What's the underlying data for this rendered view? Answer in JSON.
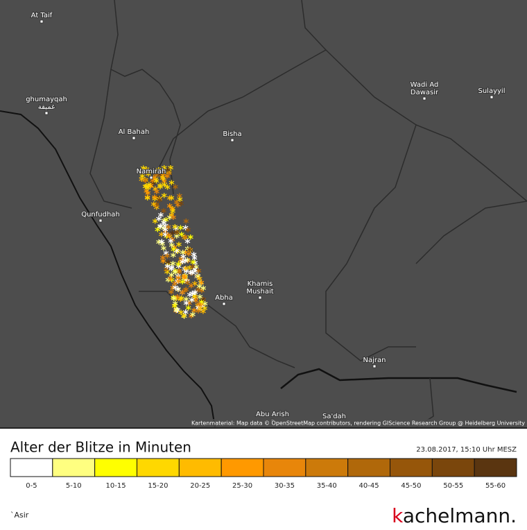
{
  "map": {
    "places": [
      {
        "lines": [
          "At Taif"
        ]
      },
      {
        "lines": [
          "ghumayqah",
          "غميقة"
        ]
      },
      {
        "lines": [
          "Al Bahah"
        ]
      },
      {
        "lines": [
          "Bisha"
        ]
      },
      {
        "lines": [
          "Wadi Ad",
          "Dawasir"
        ]
      },
      {
        "lines": [
          "Sulayyil"
        ]
      },
      {
        "lines": [
          "Namirah"
        ]
      },
      {
        "lines": [
          "Qunfudhah"
        ]
      },
      {
        "lines": [
          "Khamis",
          "Mushait"
        ]
      },
      {
        "lines": [
          "Abha"
        ]
      },
      {
        "lines": [
          "Najran"
        ]
      },
      {
        "lines": [
          "Abu Arish"
        ]
      },
      {
        "lines": [
          "Sa'dah"
        ]
      }
    ],
    "attribution": "Kartenmaterial: Map data © OpenStreetMap contributors, rendering GIScience Research Group @ Heidelberg University"
  },
  "legend": {
    "title": "Alter der Blitze in Minuten",
    "timestamp": "23.08.2017, 15:10 Uhr MESZ",
    "classes": [
      {
        "label": "0-5",
        "color": "#ffffff"
      },
      {
        "label": "5-10",
        "color": "#ffff80"
      },
      {
        "label": "10-15",
        "color": "#ffff00"
      },
      {
        "label": "15-20",
        "color": "#ffd800"
      },
      {
        "label": "20-25",
        "color": "#ffbb00"
      },
      {
        "label": "25-30",
        "color": "#ff9900"
      },
      {
        "label": "30-35",
        "color": "#e8860a"
      },
      {
        "label": "35-40",
        "color": "#cc7a0a"
      },
      {
        "label": "40-45",
        "color": "#b0680a"
      },
      {
        "label": "45-50",
        "color": "#96560a"
      },
      {
        "label": "50-55",
        "color": "#7a460c"
      },
      {
        "label": "55-60",
        "color": "#5a3510"
      }
    ]
  },
  "region": "`Asir",
  "brand": {
    "first": "k",
    "rest": "achelmann."
  }
}
